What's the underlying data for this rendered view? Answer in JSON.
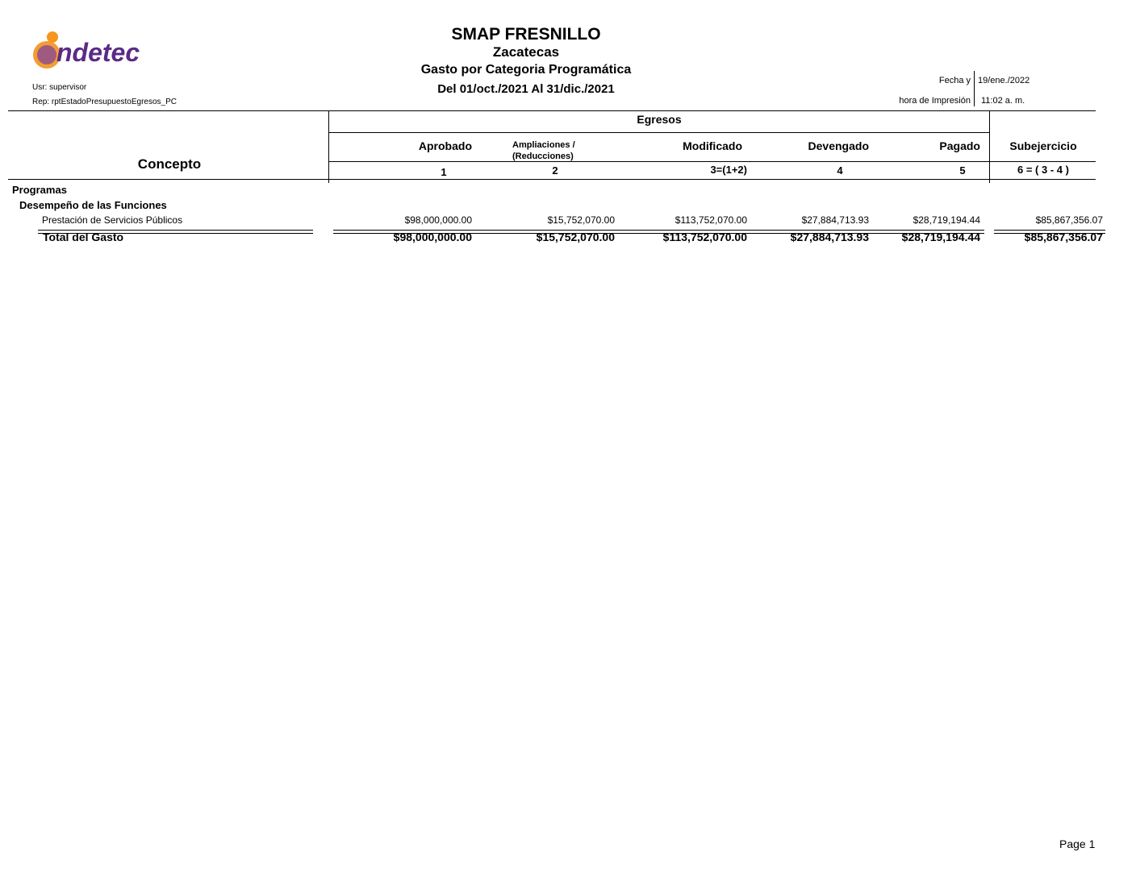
{
  "header": {
    "logo_text": "indetec",
    "title": "SMAP FRESNILLO",
    "state": "Zacatecas",
    "report_name": "Gasto por Categoria Programática",
    "period": "Del 01/oct./2021 Al 31/dic./2021",
    "user": "Usr: supervisor",
    "report_id": "Rep: rptEstadoPresupuestoEgresos_PC",
    "date_label": "Fecha y",
    "date_value": "19/ene./2022",
    "time_label": "hora de Impresión",
    "time_value": "11:02 a. m."
  },
  "table": {
    "concept_header": "Concepto",
    "group_header": "Egresos",
    "columns": [
      {
        "label": "Aprobado",
        "num": "1"
      },
      {
        "label": "Ampliaciones /",
        "label2": "(Reducciones)",
        "num": "2"
      },
      {
        "label": "Modificado",
        "num": "3=(1+2)"
      },
      {
        "label": "Devengado",
        "num": "4"
      },
      {
        "label": "Pagado",
        "num": "5"
      },
      {
        "label": "Subejercicio",
        "num": "6 = ( 3 - 4 )"
      }
    ],
    "section": "Programas",
    "subsection": "Desempeño de las Funciones",
    "row": {
      "label": "Prestación de Servicios Públicos",
      "values": [
        "$98,000,000.00",
        "$15,752,070.00",
        "$113,752,070.00",
        "$27,884,713.93",
        "$28,719,194.44",
        "$85,867,356.07"
      ]
    },
    "total": {
      "label": "Total del Gasto",
      "values": [
        "$98,000,000.00",
        "$15,752,070.00",
        "$113,752,070.00",
        "$27,884,713.93",
        "$28,719,194.44",
        "$85,867,356.07"
      ]
    }
  },
  "footer": {
    "page": "Page 1"
  }
}
